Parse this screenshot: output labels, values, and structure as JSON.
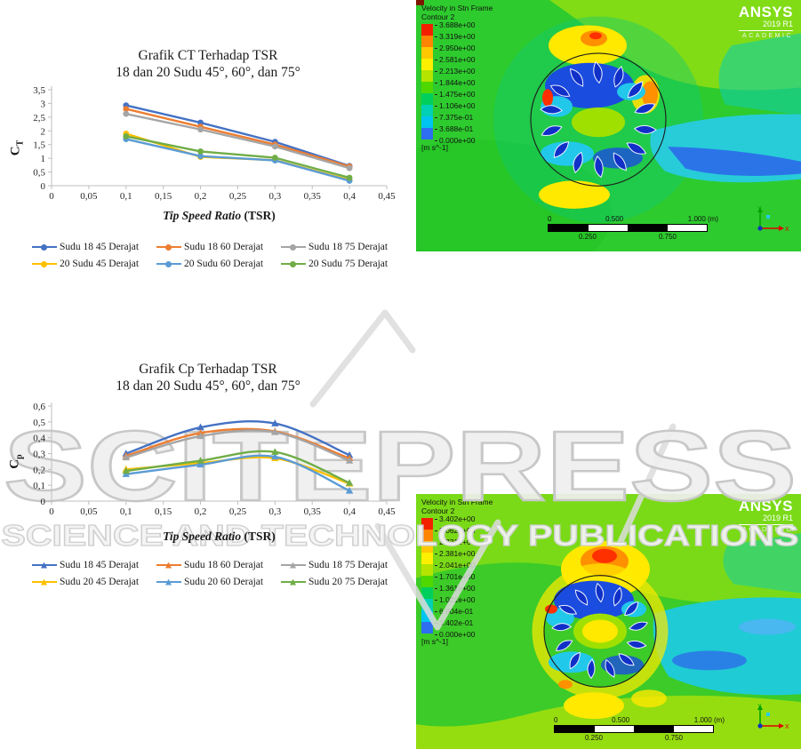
{
  "watermark": {
    "line1": "SCITEPRESS",
    "line2": "SCIENCE AND TECHNOLOGY PUBLICATIONS"
  },
  "chart_data": [
    {
      "type": "line",
      "title": "Grafik CT Terhadap TSR",
      "subtitle": "18 dan 20 Sudu 45°, 60°, dan 75°",
      "xlabel_italic": "Tip Speed Ratio",
      "xlabel_rest": " (TSR)",
      "ylabel_main": "C",
      "ylabel_sub": "T",
      "xlim": [
        0,
        0.45
      ],
      "ylim": [
        0,
        3.5
      ],
      "x": [
        0.1,
        0.2,
        0.3,
        0.4
      ],
      "x_tick_values": [
        0,
        0.05,
        0.1,
        0.15,
        0.2,
        0.25,
        0.3,
        0.35,
        0.4,
        0.45
      ],
      "x_tick_labels": [
        "0",
        "0,05",
        "0,1",
        "0,15",
        "0,2",
        "0,25",
        "0,3",
        "0,35",
        "0,4",
        "0,45"
      ],
      "y_tick_values": [
        0,
        0.5,
        1,
        1.5,
        2,
        2.5,
        3,
        3.5
      ],
      "y_tick_labels": [
        "0",
        "0,5",
        "1",
        "1,5",
        "2",
        "2,5",
        "3",
        "3,5"
      ],
      "marker": "circle",
      "smooth": false,
      "legend_position": "bottom",
      "series": [
        {
          "name": "Sudu 18 45 Derajat",
          "color": "#4472C4",
          "values": [
            2.93,
            2.3,
            1.6,
            0.72
          ]
        },
        {
          "name": "Sudu 18 60 Derajat",
          "color": "#ED7D31",
          "values": [
            2.8,
            2.15,
            1.5,
            0.7
          ]
        },
        {
          "name": "Sudu 18 75 Derajat",
          "color": "#A5A5A5",
          "values": [
            2.62,
            2.05,
            1.43,
            0.64
          ]
        },
        {
          "name": "20 Sudu 45 Derajat",
          "color": "#FFC000",
          "values": [
            1.9,
            1.05,
            0.93,
            0.21
          ]
        },
        {
          "name": "20 Sudu 60 Derajat",
          "color": "#5B9BD5",
          "values": [
            1.7,
            1.08,
            0.92,
            0.18
          ]
        },
        {
          "name": "20 Sudu 75 Derajat",
          "color": "#70AD47",
          "values": [
            1.8,
            1.25,
            1.02,
            0.29
          ]
        }
      ]
    },
    {
      "type": "line",
      "title": "Grafik Cp Terhadap TSR",
      "subtitle": "18 dan 20 Sudu 45°, 60°, dan 75°",
      "xlabel_italic": "Tip Speed Ratio",
      "xlabel_rest": " (TSR)",
      "ylabel_main": "C",
      "ylabel_sub": "p",
      "xlim": [
        0,
        0.45
      ],
      "ylim": [
        0,
        0.6
      ],
      "x": [
        0.1,
        0.2,
        0.3,
        0.4
      ],
      "x_tick_values": [
        0,
        0.05,
        0.1,
        0.15,
        0.2,
        0.25,
        0.3,
        0.35,
        0.4,
        0.45
      ],
      "x_tick_labels": [
        "0",
        "0,05",
        "0,1",
        "0,15",
        "0,2",
        "0,25",
        "0,3",
        "0,35",
        "0,4",
        "0,45"
      ],
      "y_tick_values": [
        0,
        0.1,
        0.2,
        0.3,
        0.4,
        0.5,
        0.6
      ],
      "y_tick_labels": [
        "0",
        "0,1",
        "0,2",
        "0,3",
        "0,4",
        "0,5",
        "0,6"
      ],
      "marker": "triangle",
      "smooth": true,
      "legend_position": "bottom",
      "series": [
        {
          "name": "Sudu 18 45 Derajat",
          "color": "#4472C4",
          "values": [
            0.3,
            0.465,
            0.49,
            0.29
          ]
        },
        {
          "name": "Sudu 18 60 Derajat",
          "color": "#ED7D31",
          "values": [
            0.285,
            0.43,
            0.44,
            0.27
          ]
        },
        {
          "name": "Sudu 18 75 Derajat",
          "color": "#A5A5A5",
          "values": [
            0.275,
            0.41,
            0.435,
            0.255
          ]
        },
        {
          "name": "Sudu 20 45 Derajat",
          "color": "#FFC000",
          "values": [
            0.2,
            0.24,
            0.27,
            0.11
          ]
        },
        {
          "name": "Sudu 20 60 Derajat",
          "color": "#5B9BD5",
          "values": [
            0.17,
            0.23,
            0.28,
            0.065
          ]
        },
        {
          "name": "Sudu 20 75 Derajat",
          "color": "#70AD47",
          "values": [
            0.19,
            0.255,
            0.31,
            0.115
          ]
        }
      ]
    }
  ],
  "colorbar_colors": [
    "#f32000",
    "#ff8400",
    "#ffc800",
    "#fcf000",
    "#b4e400",
    "#4fd800",
    "#00cf5c",
    "#00d0b4",
    "#00c4f0",
    "#2e6ef0"
  ],
  "ansys": [
    {
      "legend_title1": "Velocity in Stn Frame",
      "legend_title2": "Contour 2",
      "levels": [
        "3.688e+00",
        "3.319e+00",
        "2.950e+00",
        "2.581e+00",
        "2.213e+00",
        "1.844e+00",
        "1.475e+00",
        "1.106e+00",
        "7.375e-01",
        "3.688e-01",
        "0.000e+00"
      ],
      "unit": "[m s^-1]",
      "brand": "ANSYS",
      "brand_version": "2019 R1",
      "brand_edition": "ACADEMIC",
      "scale_top_0": "0",
      "scale_top_1": "0.500",
      "scale_top_2": "1.000  (m)",
      "scale_bottom_0": "0.250",
      "scale_bottom_1": "0.750",
      "axis_x": "X",
      "axis_y": "Y"
    },
    {
      "legend_title1": "Velocity in Stn Frame",
      "legend_title2": "Contour 2",
      "levels": [
        "3.402e+00",
        "3.062e+00",
        "2.721e+00",
        "2.381e+00",
        "2.041e+00",
        "1.701e+00",
        "1.361e+00",
        "1.021e+00",
        "6.804e-01",
        "3.402e-01",
        "0.000e+00"
      ],
      "unit": "[m s^-1]",
      "brand": "ANSYS",
      "brand_version": "2019 R1",
      "brand_edition": "ACADEMIC",
      "scale_top_0": "0",
      "scale_top_1": "0.500",
      "scale_top_2": "1.000  (m)",
      "scale_bottom_0": "0.250",
      "scale_bottom_1": "0.750",
      "axis_x": "X",
      "axis_y": "Y"
    }
  ]
}
